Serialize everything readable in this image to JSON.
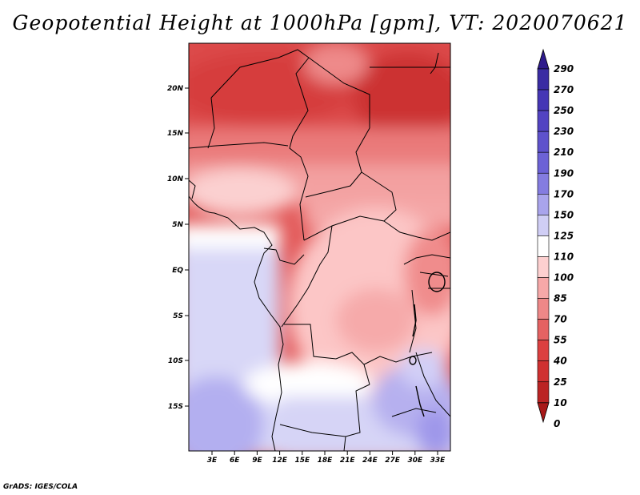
{
  "title": "Geopotential Height at 1000hPa [gpm], VT: 2020070621",
  "footer": "GrADS: IGES/COLA",
  "map": {
    "lat_labels": [
      "20N",
      "15N",
      "10N",
      "5N",
      "EQ",
      "5S",
      "10S",
      "15S"
    ],
    "lon_labels": [
      "3E",
      "6E",
      "9E",
      "12E",
      "15E",
      "18E",
      "21E",
      "24E",
      "27E",
      "30E",
      "33E"
    ]
  },
  "colorbar": {
    "levels": [
      "290",
      "270",
      "250",
      "230",
      "210",
      "190",
      "170",
      "150",
      "125",
      "110",
      "100",
      "85",
      "70",
      "55",
      "40",
      "25",
      "10",
      "0"
    ],
    "colors": [
      "#2e1a8c",
      "#3a2ca3",
      "#4536b5",
      "#5243c2",
      "#5e52cc",
      "#6c62d6",
      "#847ce0",
      "#a9a4ec",
      "#d0cef5",
      "#ffffff",
      "#fdd0d0",
      "#f6a8a8",
      "#ee8888",
      "#e56262",
      "#dc4040",
      "#cf3131",
      "#bb2424",
      "#a81818"
    ]
  }
}
